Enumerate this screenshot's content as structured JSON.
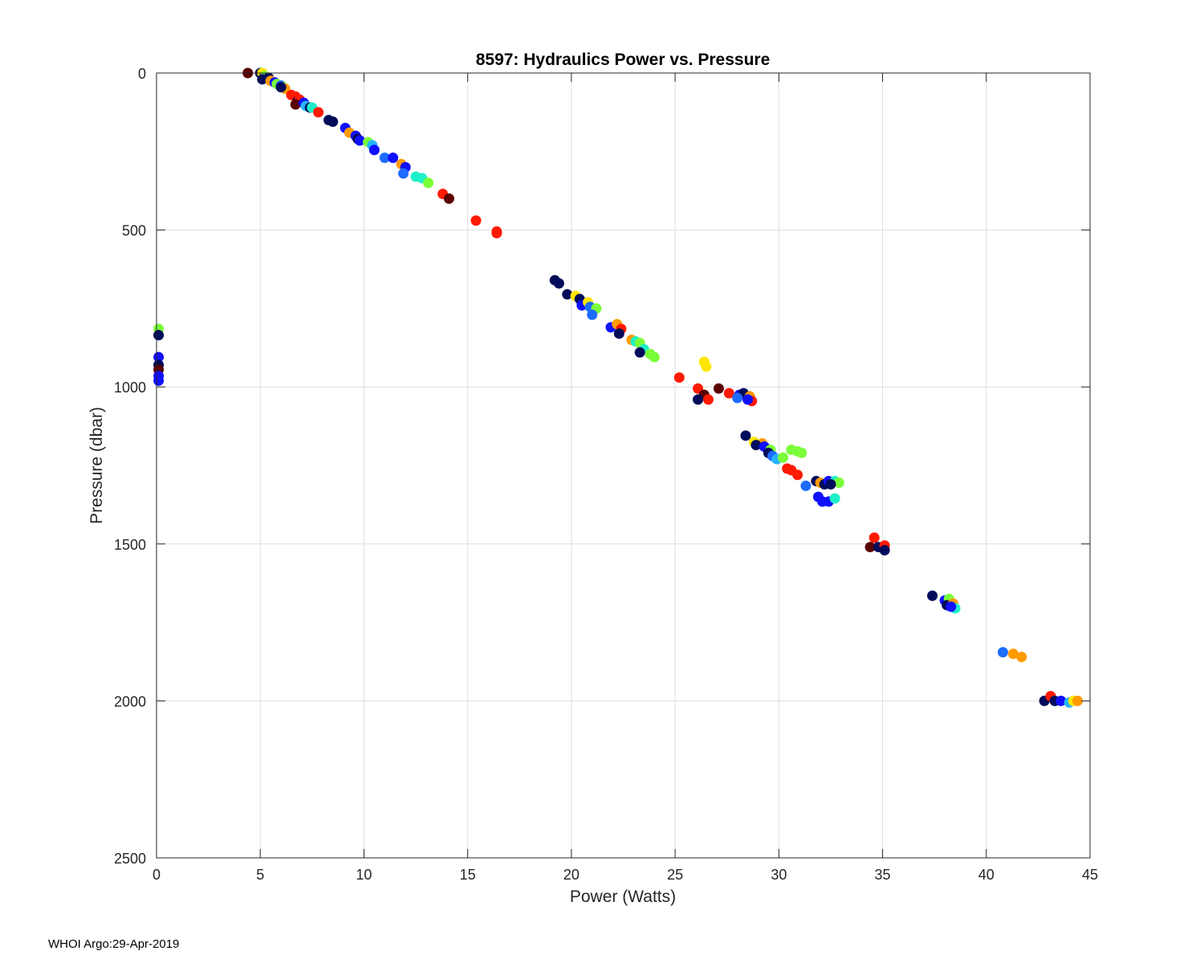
{
  "footer": "WHOI Argo:29-Apr-2019",
  "chart_data": {
    "type": "scatter",
    "title": "8597: Hydraulics Power vs. Pressure",
    "xlabel": "Power (Watts)",
    "ylabel": "Pressure (dbar)",
    "xlim": [
      0,
      45
    ],
    "ylim": [
      0,
      2500
    ],
    "y_reversed": true,
    "grid": true,
    "xticks": [
      "0",
      "5",
      "10",
      "15",
      "20",
      "25",
      "30",
      "35",
      "40",
      "45"
    ],
    "yticks": [
      "0",
      "500",
      "1000",
      "1500",
      "2000",
      "2500"
    ],
    "colors": [
      "#5a0000",
      "#000c5a",
      "#1010ff",
      "#1c6cff",
      "#28b4ff",
      "#1ef0c8",
      "#7aff3a",
      "#ffe600",
      "#ff9a00",
      "#ff1a00"
    ],
    "points": [
      [
        4.4,
        0,
        0
      ],
      [
        5.0,
        0,
        1
      ],
      [
        5.1,
        0,
        7
      ],
      [
        5.2,
        10,
        6
      ],
      [
        5.4,
        15,
        1
      ],
      [
        5.1,
        20,
        1
      ],
      [
        5.5,
        25,
        8
      ],
      [
        5.7,
        30,
        2
      ],
      [
        5.8,
        35,
        6
      ],
      [
        6.0,
        40,
        3
      ],
      [
        6.1,
        45,
        6
      ],
      [
        6.2,
        50,
        8
      ],
      [
        6.0,
        45,
        1
      ],
      [
        6.5,
        70,
        9
      ],
      [
        6.7,
        75,
        9
      ],
      [
        6.8,
        90,
        1
      ],
      [
        6.9,
        85,
        9
      ],
      [
        6.7,
        100,
        0
      ],
      [
        7.1,
        95,
        2
      ],
      [
        7.2,
        105,
        4
      ],
      [
        7.4,
        110,
        1
      ],
      [
        7.5,
        110,
        5
      ],
      [
        7.8,
        125,
        9
      ],
      [
        8.3,
        150,
        1
      ],
      [
        8.5,
        155,
        1
      ],
      [
        9.1,
        175,
        2
      ],
      [
        9.3,
        190,
        8
      ],
      [
        9.6,
        200,
        2
      ],
      [
        9.7,
        210,
        1
      ],
      [
        9.8,
        215,
        2
      ],
      [
        10.2,
        220,
        6
      ],
      [
        10.4,
        230,
        4
      ],
      [
        10.5,
        245,
        2
      ],
      [
        11.0,
        270,
        3
      ],
      [
        11.4,
        270,
        2
      ],
      [
        11.8,
        290,
        8
      ],
      [
        12.0,
        300,
        2
      ],
      [
        11.9,
        320,
        3
      ],
      [
        12.5,
        330,
        5
      ],
      [
        12.8,
        335,
        5
      ],
      [
        13.1,
        350,
        6
      ],
      [
        13.8,
        385,
        9
      ],
      [
        14.1,
        400,
        0
      ],
      [
        15.4,
        470,
        9
      ],
      [
        16.4,
        505,
        9
      ],
      [
        16.4,
        510,
        9
      ],
      [
        0.1,
        815,
        6
      ],
      [
        0.1,
        835,
        1
      ],
      [
        0.1,
        905,
        2
      ],
      [
        0.1,
        930,
        1
      ],
      [
        0.1,
        945,
        0
      ],
      [
        0.1,
        965,
        2
      ],
      [
        0.1,
        980,
        2
      ],
      [
        19.2,
        660,
        1
      ],
      [
        19.4,
        670,
        1
      ],
      [
        19.8,
        705,
        1
      ],
      [
        20.2,
        710,
        7
      ],
      [
        20.4,
        720,
        1
      ],
      [
        20.5,
        740,
        2
      ],
      [
        20.8,
        730,
        7
      ],
      [
        20.9,
        745,
        3
      ],
      [
        21.2,
        750,
        6
      ],
      [
        21.0,
        770,
        3
      ],
      [
        21.9,
        810,
        2
      ],
      [
        22.2,
        800,
        8
      ],
      [
        22.4,
        815,
        9
      ],
      [
        22.3,
        830,
        1
      ],
      [
        22.9,
        850,
        8
      ],
      [
        23.1,
        855,
        5
      ],
      [
        23.3,
        860,
        6
      ],
      [
        23.5,
        880,
        5
      ],
      [
        23.3,
        890,
        1
      ],
      [
        23.8,
        895,
        6
      ],
      [
        24.0,
        905,
        6
      ],
      [
        25.2,
        970,
        9
      ],
      [
        26.4,
        920,
        7
      ],
      [
        26.5,
        935,
        7
      ],
      [
        26.1,
        1005,
        9
      ],
      [
        26.4,
        1025,
        0
      ],
      [
        26.6,
        1040,
        9
      ],
      [
        26.1,
        1040,
        1
      ],
      [
        27.1,
        1005,
        0
      ],
      [
        27.6,
        1020,
        9
      ],
      [
        28.1,
        1025,
        2
      ],
      [
        28.3,
        1020,
        1
      ],
      [
        28.6,
        1030,
        8
      ],
      [
        28.7,
        1045,
        9
      ],
      [
        28.0,
        1035,
        3
      ],
      [
        28.5,
        1040,
        2
      ],
      [
        28.4,
        1155,
        1
      ],
      [
        28.8,
        1175,
        7
      ],
      [
        29.2,
        1180,
        8
      ],
      [
        28.9,
        1185,
        1
      ],
      [
        29.3,
        1190,
        2
      ],
      [
        29.6,
        1200,
        6
      ],
      [
        29.5,
        1210,
        1
      ],
      [
        29.7,
        1220,
        3
      ],
      [
        29.9,
        1230,
        4
      ],
      [
        30.2,
        1225,
        6
      ],
      [
        30.6,
        1200,
        6
      ],
      [
        30.9,
        1205,
        6
      ],
      [
        31.1,
        1210,
        6
      ],
      [
        30.4,
        1260,
        9
      ],
      [
        30.6,
        1265,
        9
      ],
      [
        30.9,
        1280,
        9
      ],
      [
        31.3,
        1315,
        3
      ],
      [
        31.8,
        1300,
        1
      ],
      [
        32.0,
        1305,
        8
      ],
      [
        32.2,
        1310,
        1
      ],
      [
        32.4,
        1300,
        2
      ],
      [
        32.7,
        1300,
        5
      ],
      [
        32.9,
        1305,
        6
      ],
      [
        32.5,
        1310,
        1
      ],
      [
        31.9,
        1350,
        2
      ],
      [
        32.1,
        1365,
        2
      ],
      [
        32.4,
        1365,
        2
      ],
      [
        32.7,
        1355,
        5
      ],
      [
        34.6,
        1480,
        9
      ],
      [
        34.4,
        1510,
        0
      ],
      [
        34.8,
        1510,
        1
      ],
      [
        35.1,
        1505,
        9
      ],
      [
        35.1,
        1520,
        1
      ],
      [
        37.4,
        1665,
        1
      ],
      [
        38.0,
        1680,
        2
      ],
      [
        38.2,
        1675,
        6
      ],
      [
        38.1,
        1695,
        1
      ],
      [
        38.4,
        1690,
        8
      ],
      [
        38.5,
        1705,
        5
      ],
      [
        38.3,
        1700,
        2
      ],
      [
        40.8,
        1845,
        3
      ],
      [
        41.3,
        1850,
        8
      ],
      [
        41.7,
        1860,
        8
      ],
      [
        42.8,
        2000,
        1
      ],
      [
        43.1,
        1985,
        9
      ],
      [
        43.3,
        2000,
        1
      ],
      [
        43.6,
        2000,
        2
      ],
      [
        44.0,
        2005,
        4
      ],
      [
        44.2,
        2000,
        7
      ],
      [
        44.4,
        2000,
        8
      ]
    ]
  }
}
